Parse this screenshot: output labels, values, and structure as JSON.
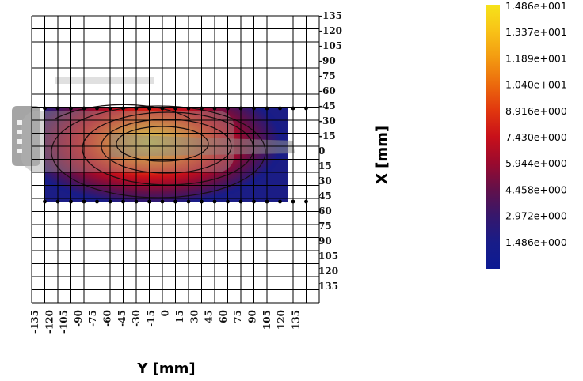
{
  "chart_data": {
    "type": "heatmap",
    "xlabel": "Y [mm]",
    "ylabel": "X [mm]",
    "x_ticks": [
      "-135",
      "-120",
      "-105",
      "-90",
      "-75",
      "-60",
      "-45",
      "-30",
      "-15",
      "0",
      "15",
      "30",
      "45",
      "60",
      "75",
      "90",
      "105",
      "120",
      "135"
    ],
    "y_ticks": [
      "-135",
      "-120",
      "-105",
      "-90",
      "-75",
      "-60",
      "-45",
      "-30",
      "-15",
      "0",
      "15",
      "30",
      "45",
      "60",
      "75",
      "90",
      "105",
      "120",
      "135"
    ],
    "xlim": [
      -135,
      135
    ],
    "ylim": [
      -135,
      135
    ],
    "grid": true,
    "data_region": {
      "y_range": [
        -120,
        120
      ],
      "x_range": [
        -45,
        45
      ]
    },
    "peak": {
      "y": 0,
      "x": -15,
      "value": 14.86
    },
    "colorbar": {
      "levels": [
        "1.486e+001",
        "1.337e+001",
        "1.189e+001",
        "1.040e+001",
        "8.916e+000",
        "7.430e+000",
        "5.944e+000",
        "4.458e+000",
        "2.972e+000",
        "1.486e+000"
      ],
      "colors": [
        "#f6e31a",
        "#f8c217",
        "#f39b11",
        "#ec6b0d",
        "#e1370e",
        "#c8101a",
        "#9a0a2e",
        "#62104a",
        "#36176c",
        "#181c88",
        "#0c1a93"
      ]
    },
    "overlay": "grey device outline"
  }
}
